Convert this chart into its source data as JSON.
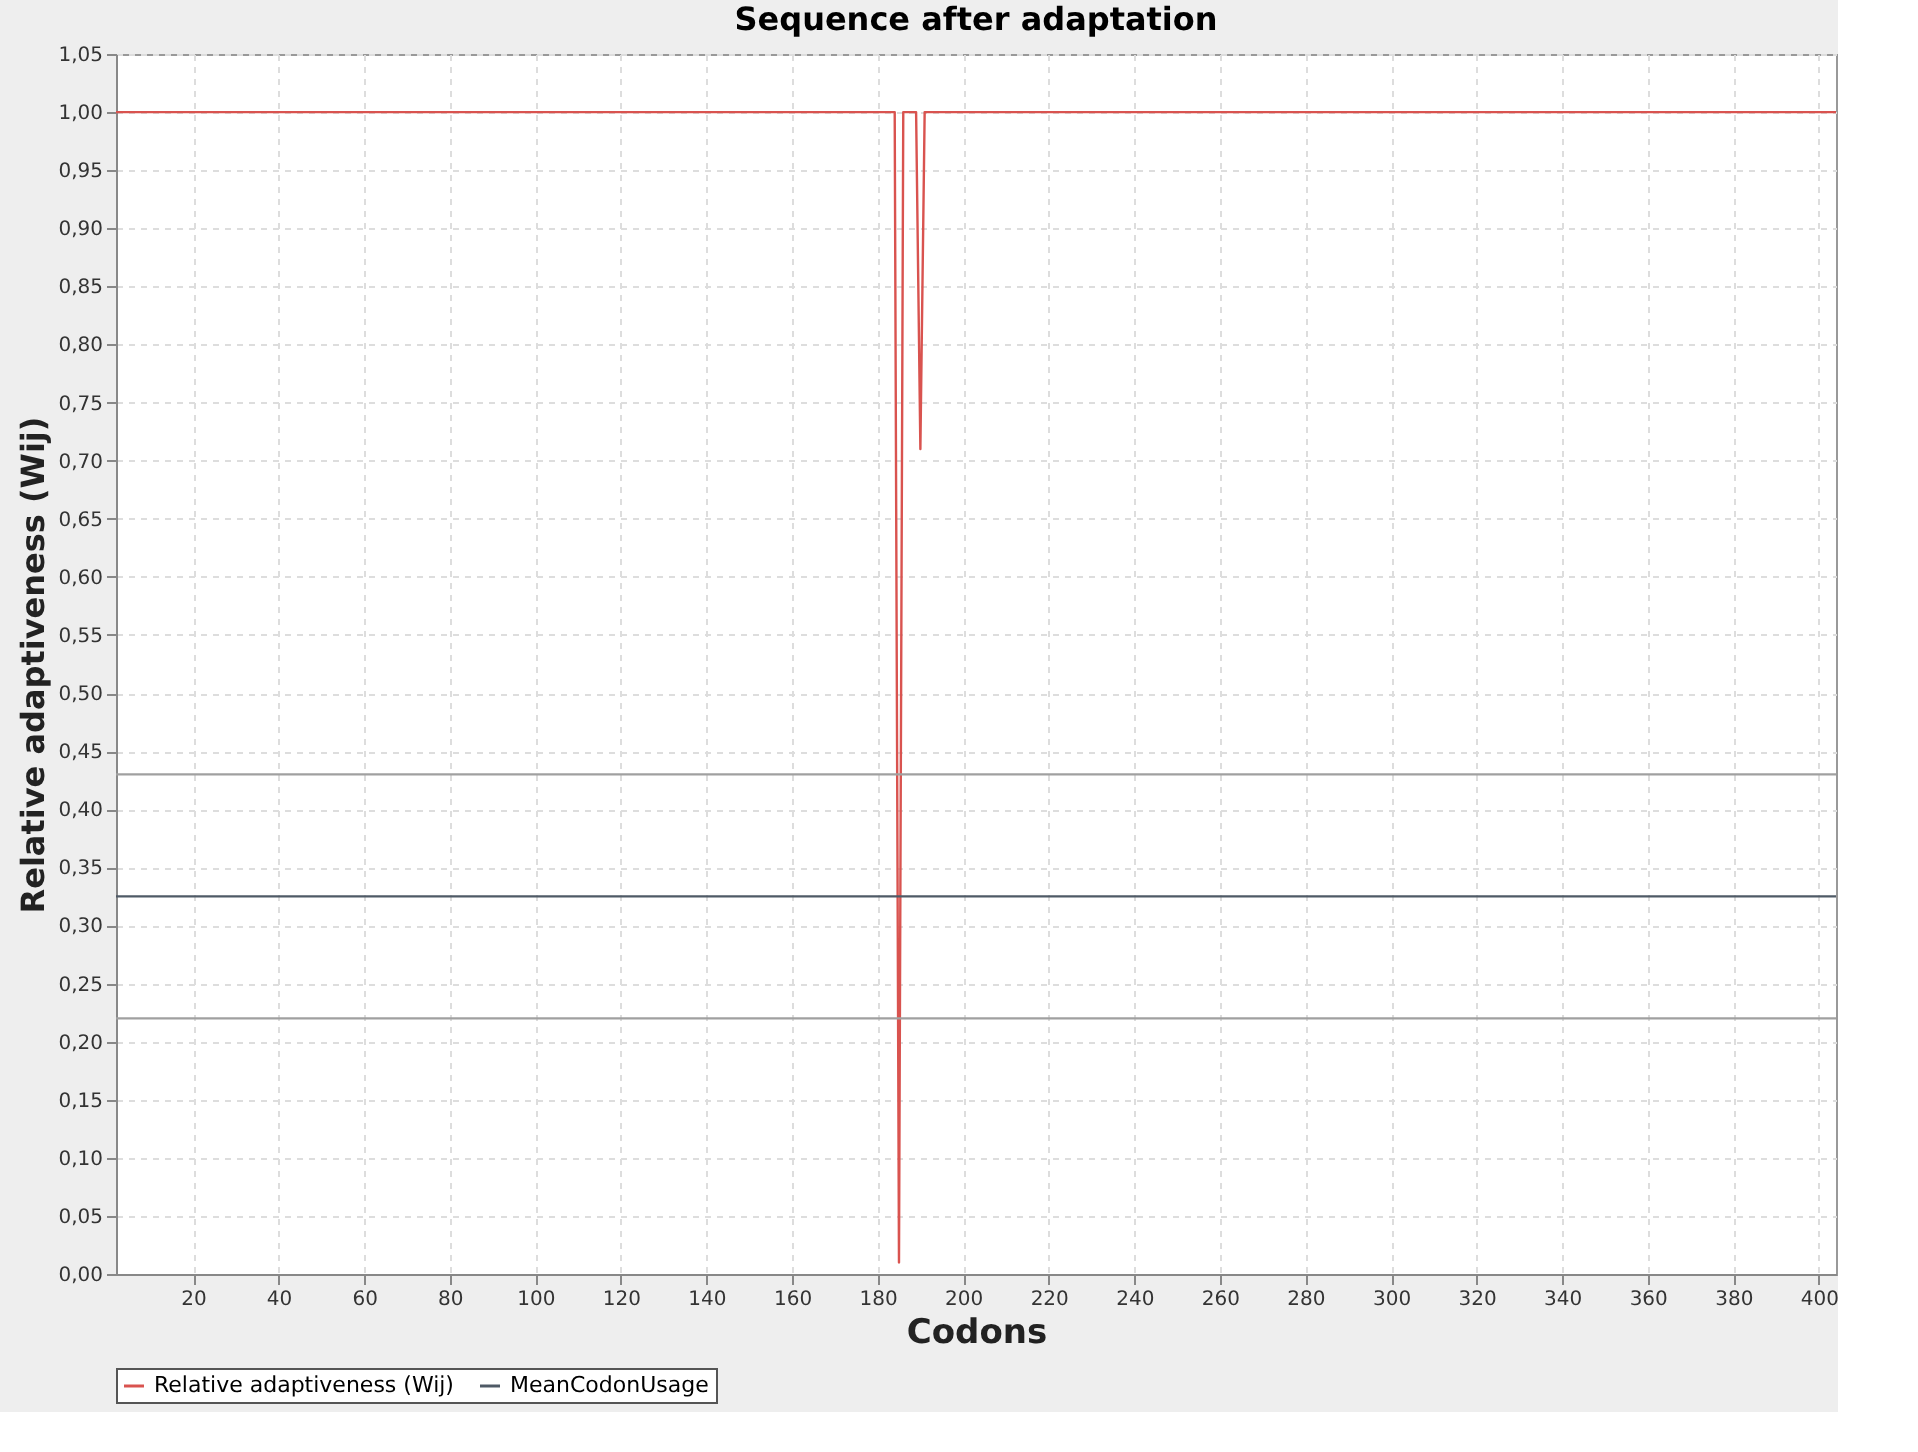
{
  "chart_data": {
    "type": "line",
    "title": "Sequence after adaptation",
    "xlabel": "Codons",
    "ylabel": "Relative adaptiveness (Wij)",
    "xlim": [
      2,
      404
    ],
    "ylim": [
      0,
      1.05
    ],
    "xticks": [
      20,
      40,
      60,
      80,
      100,
      120,
      140,
      160,
      180,
      200,
      220,
      240,
      260,
      280,
      300,
      320,
      340,
      360,
      380,
      400
    ],
    "yticks": [
      {
        "value": 0,
        "label": "0,00"
      },
      {
        "value": 0.05,
        "label": "0,05"
      },
      {
        "value": 0.1,
        "label": "0,10"
      },
      {
        "value": 0.15,
        "label": "0,15"
      },
      {
        "value": 0.2,
        "label": "0,20"
      },
      {
        "value": 0.25,
        "label": "0,25"
      },
      {
        "value": 0.3,
        "label": "0,30"
      },
      {
        "value": 0.35,
        "label": "0,35"
      },
      {
        "value": 0.4,
        "label": "0,40"
      },
      {
        "value": 0.45,
        "label": "0,45"
      },
      {
        "value": 0.5,
        "label": "0,50"
      },
      {
        "value": 0.55,
        "label": "0,55"
      },
      {
        "value": 0.6,
        "label": "0,60"
      },
      {
        "value": 0.65,
        "label": "0,65"
      },
      {
        "value": 0.7,
        "label": "0,70"
      },
      {
        "value": 0.75,
        "label": "0,75"
      },
      {
        "value": 0.8,
        "label": "0,80"
      },
      {
        "value": 0.85,
        "label": "0,85"
      },
      {
        "value": 0.9,
        "label": "0,90"
      },
      {
        "value": 0.95,
        "label": "0,95"
      },
      {
        "value": 1,
        "label": "1,00"
      },
      {
        "value": 1.05,
        "label": "1,05"
      }
    ],
    "series": [
      {
        "name": "Relative adaptiveness (Wij)",
        "color": "#d9534f",
        "x": [
          2,
          184,
          185,
          186,
          189,
          190,
          191,
          404
        ],
        "values": [
          1,
          1,
          0.01,
          1,
          1,
          0.71,
          1,
          1
        ]
      },
      {
        "name": "MeanCodonUsage",
        "color": "#4f5a66",
        "x": [
          2,
          404
        ],
        "values": [
          0.325,
          0.325
        ]
      }
    ],
    "ref_lines": [
      {
        "axis": "y",
        "value": 0.43,
        "color": "#a0a0a0"
      },
      {
        "axis": "y",
        "value": 0.22,
        "color": "#a0a0a0"
      }
    ],
    "grid": true,
    "legend": "bottom",
    "marker": "none",
    "line_style": "solid"
  }
}
